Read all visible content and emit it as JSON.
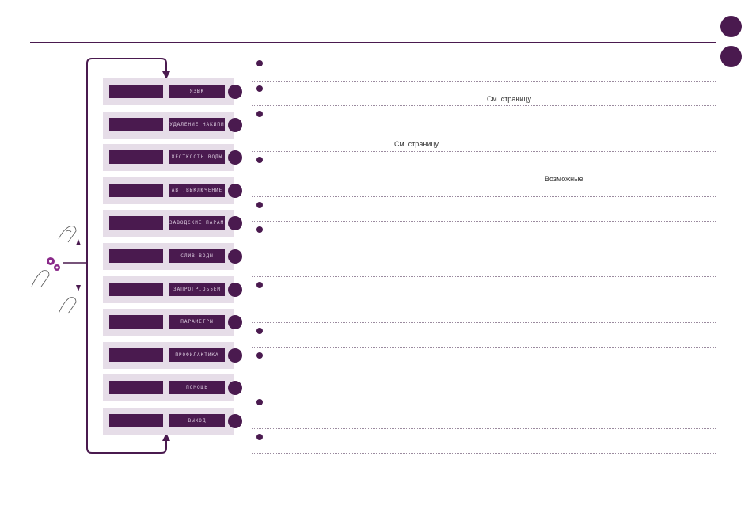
{
  "colors": {
    "accent": "#4a1a4f",
    "menu_bg": "#e6dde8",
    "label_text": "#d8c8dc"
  },
  "menu": {
    "items": [
      {
        "label": "ЯЗЫК"
      },
      {
        "label": "УДАЛЕНИЕ НАКИПИ"
      },
      {
        "label": "ЖЕСТКОСТЬ ВОДЫ"
      },
      {
        "label": "АВТ.ВЫКЛЮЧЕНИЕ"
      },
      {
        "label": "ЗАВОДСКИЕ ПАРАМ."
      },
      {
        "label": "СЛИВ ВОДЫ"
      },
      {
        "label": "ЗАПРОГР.ОБЪЕМ"
      },
      {
        "label": "ПАРАМЕТРЫ"
      },
      {
        "label": "ПРОФИЛАКТИКА"
      },
      {
        "label": "ПОМОЩЬ"
      },
      {
        "label": "ВЫХОД"
      }
    ]
  },
  "content": {
    "see_page_1": "См. страницу",
    "see_page_2": "См. страницу",
    "possible": "Возможные"
  },
  "icons": {
    "finger_up": "finger-press-icon",
    "finger_settings": "finger-press-icon",
    "gear": "gear-icon",
    "finger_down": "finger-press-icon",
    "arrow_up": "triangle-up-icon",
    "arrow_down": "triangle-down-icon"
  }
}
